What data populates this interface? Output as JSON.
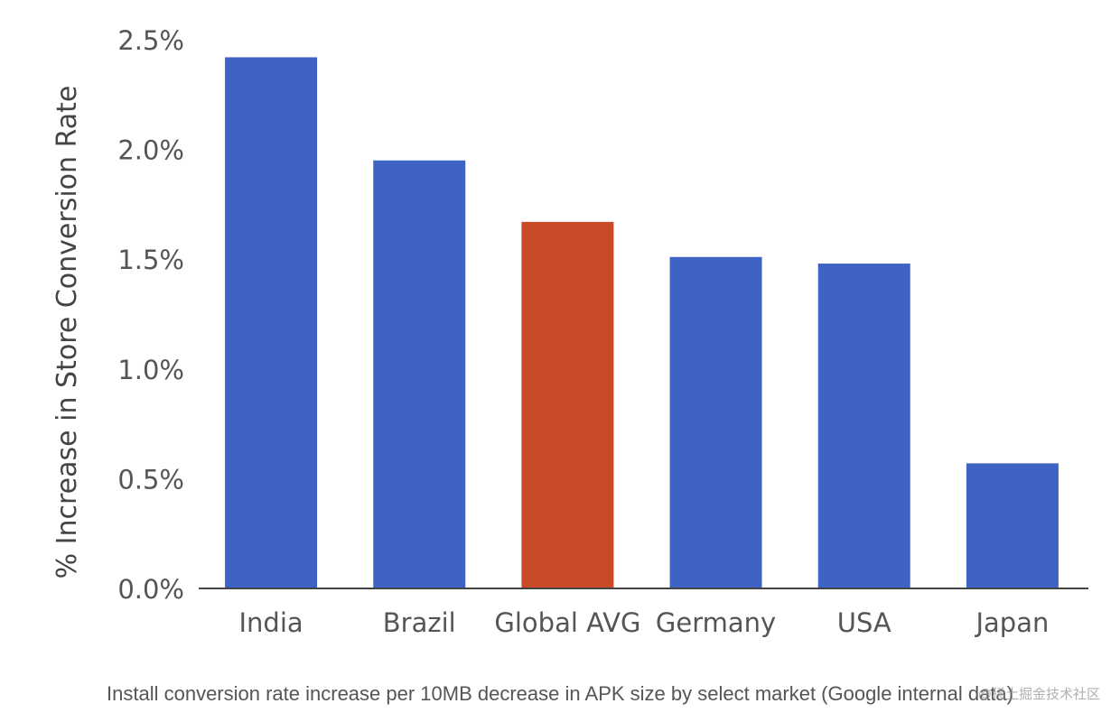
{
  "chart_data": {
    "type": "bar",
    "categories": [
      "India",
      "Brazil",
      "Global AVG",
      "Germany",
      "USA",
      "Japan"
    ],
    "values": [
      2.42,
      1.95,
      1.67,
      1.51,
      1.48,
      0.57
    ],
    "bar_colors": [
      "#3e63c5",
      "#3e63c5",
      "#c94a26",
      "#3e63c5",
      "#3e63c5",
      "#3e63c5"
    ],
    "ylabel": "% Increase in Store Conversion Rate",
    "xlabel": "",
    "ylim": [
      0,
      2.5
    ],
    "yticks": [
      0,
      0.5,
      1.0,
      1.5,
      2.0,
      2.5
    ],
    "ytick_labels": [
      "0.0%",
      "0.5%",
      "1.0%",
      "1.5%",
      "2.0%",
      "2.5%"
    ],
    "grid": false
  },
  "caption": "Install conversion rate increase per 10MB decrease in APK size by select market (Google internal data)",
  "watermark": "@稀土掘金技术社区"
}
